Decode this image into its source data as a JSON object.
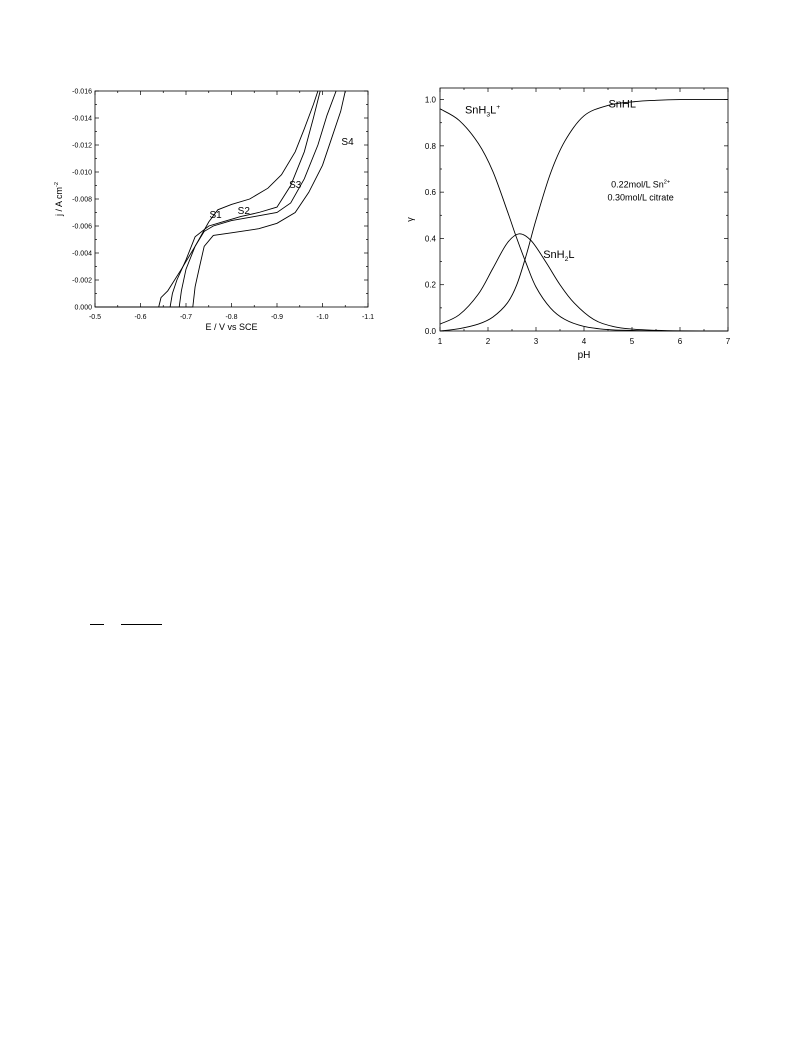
{
  "chart_data": [
    {
      "type": "line",
      "xlabel": "E / V vs SCE",
      "ylabel": "j / A cm⁻²",
      "xlim": [
        -0.5,
        -1.1
      ],
      "ylim": [
        0.0,
        -0.016
      ],
      "x_ticks": [
        "-0.5",
        "-0.6",
        "-0.7",
        "-0.8",
        "-0.9",
        "-1.0",
        "-1.1"
      ],
      "y_ticks": [
        "0.000",
        "-0.002",
        "-0.004",
        "-0.006",
        "-0.008",
        "-0.010",
        "-0.012",
        "-0.014",
        "-0.016"
      ],
      "grid": false,
      "series": [
        {
          "name": "S1",
          "x": [
            -0.5,
            -0.64,
            -0.645,
            -0.66,
            -0.69,
            -0.72,
            -0.74,
            -0.75,
            -0.77,
            -0.8,
            -0.84,
            -0.88,
            -0.91,
            -0.94,
            -0.96,
            -0.98,
            -0.99
          ],
          "y": [
            0.0,
            0.0,
            -0.0007,
            -0.0012,
            -0.0028,
            -0.0045,
            -0.0057,
            -0.0063,
            -0.0072,
            -0.0076,
            -0.008,
            -0.0088,
            -0.0098,
            -0.0115,
            -0.0132,
            -0.015,
            -0.016
          ]
        },
        {
          "name": "S2",
          "x": [
            -0.5,
            -0.665,
            -0.67,
            -0.68,
            -0.7,
            -0.72,
            -0.75,
            -0.78,
            -0.82,
            -0.86,
            -0.9,
            -0.93,
            -0.96,
            -0.98,
            -0.995
          ],
          "y": [
            0.0,
            0.0,
            -0.001,
            -0.002,
            -0.0035,
            -0.0052,
            -0.006,
            -0.0063,
            -0.0067,
            -0.007,
            -0.0074,
            -0.009,
            -0.0115,
            -0.014,
            -0.016
          ]
        },
        {
          "name": "S3",
          "x": [
            -0.5,
            -0.685,
            -0.69,
            -0.7,
            -0.72,
            -0.74,
            -0.76,
            -0.8,
            -0.85,
            -0.9,
            -0.93,
            -0.96,
            -0.99,
            -1.01,
            -1.03
          ],
          "y": [
            0.0,
            0.0,
            -0.0012,
            -0.0028,
            -0.0045,
            -0.0056,
            -0.006,
            -0.0064,
            -0.0067,
            -0.007,
            -0.0077,
            -0.0095,
            -0.012,
            -0.0142,
            -0.016
          ]
        },
        {
          "name": "S4",
          "x": [
            -0.5,
            -0.715,
            -0.72,
            -0.73,
            -0.74,
            -0.76,
            -0.8,
            -0.86,
            -0.9,
            -0.94,
            -0.97,
            -1.0,
            -1.02,
            -1.04,
            -1.05
          ],
          "y": [
            0.0,
            0.0,
            -0.0015,
            -0.003,
            -0.0045,
            -0.0053,
            -0.0055,
            -0.0058,
            -0.0062,
            -0.007,
            -0.0085,
            -0.0105,
            -0.0125,
            -0.0145,
            -0.016
          ]
        }
      ]
    },
    {
      "type": "line",
      "xlabel": "pH",
      "ylabel": "γ",
      "xlim": [
        1,
        7
      ],
      "ylim": [
        0.0,
        1.05
      ],
      "x_ticks": [
        "1",
        "2",
        "3",
        "4",
        "5",
        "6",
        "7"
      ],
      "y_ticks": [
        "0.0",
        "0.2",
        "0.4",
        "0.6",
        "0.8",
        "1.0"
      ],
      "grid": false,
      "annotation": [
        "0.22mol/L Sn²⁺",
        "0.30mol/L citrate"
      ],
      "series": [
        {
          "name": "SnH₃L⁺",
          "x": [
            1.0,
            1.4,
            1.8,
            2.1,
            2.4,
            2.6,
            2.8,
            3.0,
            3.3,
            3.6,
            4.0,
            4.5,
            5.0,
            5.5,
            6.0,
            7.0
          ],
          "y": [
            0.96,
            0.91,
            0.81,
            0.69,
            0.52,
            0.4,
            0.29,
            0.19,
            0.1,
            0.05,
            0.02,
            0.006,
            0.002,
            0.001,
            0.0,
            0.0
          ]
        },
        {
          "name": "SnH₂L",
          "x": [
            1.0,
            1.4,
            1.8,
            2.1,
            2.4,
            2.65,
            2.9,
            3.2,
            3.5,
            3.8,
            4.2,
            4.6,
            5.0,
            5.5,
            6.0,
            7.0
          ],
          "y": [
            0.03,
            0.07,
            0.16,
            0.27,
            0.38,
            0.42,
            0.39,
            0.3,
            0.2,
            0.12,
            0.05,
            0.02,
            0.008,
            0.003,
            0.001,
            0.0
          ]
        },
        {
          "name": "SnHL⁻",
          "x": [
            1.0,
            1.4,
            1.8,
            2.1,
            2.4,
            2.6,
            2.8,
            3.0,
            3.3,
            3.6,
            4.0,
            4.5,
            5.0,
            5.5,
            6.0,
            7.0
          ],
          "y": [
            0.0,
            0.01,
            0.03,
            0.06,
            0.12,
            0.2,
            0.33,
            0.48,
            0.68,
            0.82,
            0.93,
            0.975,
            0.99,
            0.997,
            1.0,
            1.0
          ]
        }
      ]
    }
  ],
  "fraction_rules": [
    true,
    true
  ]
}
